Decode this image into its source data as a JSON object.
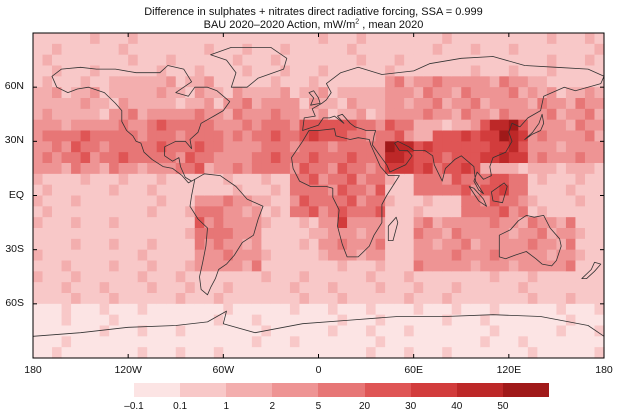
{
  "title": {
    "line1": "Difference in sulphates + nitrates direct radiative forcing, SSA = 0.999",
    "line2_before": "BAU 2020–2020 Action, mW/m",
    "line2_sup": "2",
    "line2_after": " , mean 2020"
  },
  "axes": {
    "lon_range": [
      -180,
      180
    ],
    "lat_range": [
      -90,
      90
    ],
    "lat_ticks": [
      {
        "lat": 60,
        "label": "60N"
      },
      {
        "lat": 30,
        "label": "30N"
      },
      {
        "lat": 0,
        "label": "EQ"
      },
      {
        "lat": -30,
        "label": "30S"
      },
      {
        "lat": -60,
        "label": "60S"
      }
    ],
    "lon_ticks": [
      {
        "lon": -180,
        "label": "180"
      },
      {
        "lon": -120,
        "label": "120W"
      },
      {
        "lon": -60,
        "label": "60W"
      },
      {
        "lon": 0,
        "label": "0"
      },
      {
        "lon": 60,
        "label": "60E"
      },
      {
        "lon": 120,
        "label": "120E"
      },
      {
        "lon": 180,
        "label": "180"
      }
    ]
  },
  "legend": {
    "colors": [
      "#fce4e4",
      "#f8c8c8",
      "#f3aeae",
      "#ee9494",
      "#e77676",
      "#df5555",
      "#d23c3c",
      "#bd2828",
      "#a01919"
    ],
    "labels": [
      "–0.1",
      "0.1",
      "1",
      "2",
      "5",
      "20",
      "30",
      "40",
      "50"
    ]
  },
  "colors": {
    "coastline": "#333333",
    "frame": "#000000"
  }
}
